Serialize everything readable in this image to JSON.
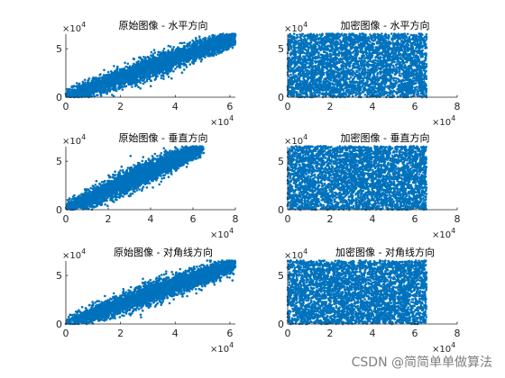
{
  "chart_data": [
    {
      "type": "scatter",
      "title": "原始图像 - 水平方向",
      "mode": "correlated",
      "x_ticks": [
        "0",
        "2",
        "4",
        "6"
      ],
      "y_ticks": [
        "0",
        "5"
      ],
      "x_exponent": "10",
      "x_exponent_power": "4",
      "y_exponent": "10",
      "y_exponent_power": "4",
      "xlim": [
        0,
        62000
      ],
      "ylim": [
        0,
        65000
      ],
      "data_range": [
        0,
        65535
      ],
      "points_approx": 4000
    },
    {
      "type": "scatter",
      "title": "加密图像 - 水平方向",
      "mode": "uniform",
      "x_ticks": [
        "0",
        "2",
        "4",
        "6",
        "8"
      ],
      "y_ticks": [
        "0",
        "5"
      ],
      "x_exponent": "10",
      "x_exponent_power": "4",
      "y_exponent": "10",
      "y_exponent_power": "4",
      "xlim": [
        0,
        80000
      ],
      "ylim": [
        0,
        65000
      ],
      "data_range": [
        0,
        65535
      ],
      "points_approx": 4000
    },
    {
      "type": "scatter",
      "title": "原始图像 - 垂直方向",
      "mode": "correlated",
      "x_ticks": [
        "0",
        "2",
        "4",
        "6",
        "8"
      ],
      "y_ticks": [
        "0",
        "5"
      ],
      "x_exponent": "10",
      "x_exponent_power": "4",
      "y_exponent": "10",
      "y_exponent_power": "4",
      "xlim": [
        0,
        80000
      ],
      "ylim": [
        0,
        65000
      ],
      "data_range": [
        0,
        65535
      ],
      "points_approx": 4000
    },
    {
      "type": "scatter",
      "title": "加密图像 - 垂直方向",
      "mode": "uniform",
      "x_ticks": [
        "0",
        "2",
        "4",
        "6",
        "8"
      ],
      "y_ticks": [
        "0",
        "5"
      ],
      "x_exponent": "10",
      "x_exponent_power": "4",
      "y_exponent": "10",
      "y_exponent_power": "4",
      "xlim": [
        0,
        80000
      ],
      "ylim": [
        0,
        65000
      ],
      "data_range": [
        0,
        65535
      ],
      "points_approx": 4000
    },
    {
      "type": "scatter",
      "title": "原始图像 - 对角线方向",
      "mode": "correlated",
      "x_ticks": [
        "0",
        "2",
        "4",
        "6"
      ],
      "y_ticks": [
        "0",
        "5"
      ],
      "x_exponent": "10",
      "x_exponent_power": "4",
      "y_exponent": "10",
      "y_exponent_power": "4",
      "xlim": [
        0,
        62000
      ],
      "ylim": [
        0,
        65000
      ],
      "data_range": [
        0,
        65535
      ],
      "points_approx": 4000
    },
    {
      "type": "scatter",
      "title": "加密图像 - 对角线方向",
      "mode": "uniform",
      "x_ticks": [
        "0",
        "2",
        "4",
        "6",
        "8"
      ],
      "y_ticks": [
        "0",
        "5"
      ],
      "x_exponent": "10",
      "x_exponent_power": "4",
      "y_exponent": "10",
      "y_exponent_power": "4",
      "xlim": [
        0,
        80000
      ],
      "ylim": [
        0,
        65000
      ],
      "data_range": [
        0,
        65535
      ],
      "points_approx": 4000
    }
  ],
  "style": {
    "marker_color": "#0072bd",
    "axis_color": "#262626"
  },
  "watermark": "CSDN @简简单单做算法"
}
